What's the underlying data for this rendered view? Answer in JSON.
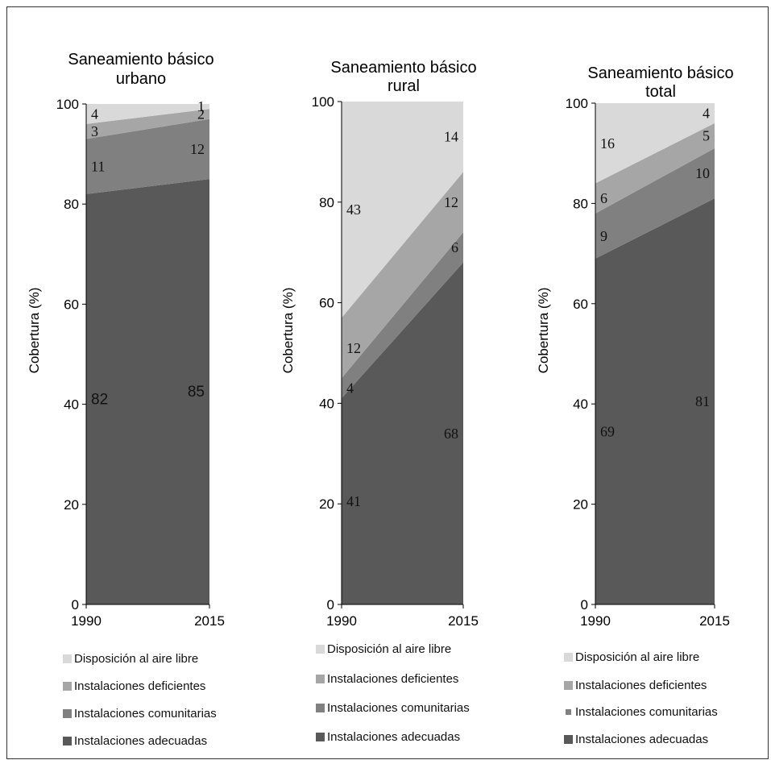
{
  "colors": {
    "aire_libre": "#d9d9d9",
    "deficientes": "#a6a6a6",
    "comunitarias": "#808080",
    "adecuadas": "#595959"
  },
  "chart_data": [
    {
      "type": "area",
      "title": "Saneamiento básico urbano",
      "title_lines": [
        "Saneamiento básico",
        "urbano"
      ],
      "ylabel": "Cobertura (%)",
      "x": [
        "1990",
        "2015"
      ],
      "ylim": [
        0,
        100
      ],
      "yticks": [
        "0",
        "20",
        "40",
        "60",
        "80",
        "100"
      ],
      "stacked": true,
      "series": [
        {
          "name": "Instalaciones adecuadas",
          "values": [
            82,
            85
          ]
        },
        {
          "name": "Instalaciones comunitarias",
          "values": [
            11,
            12
          ]
        },
        {
          "name": "Instalaciones deficientes",
          "values": [
            3,
            2
          ]
        },
        {
          "name": "Disposición al aire libre",
          "values": [
            4,
            1
          ]
        }
      ],
      "legend": [
        "Disposición al aire libre",
        "Instalaciones deficientes",
        "Instalaciones comunitarias",
        "Instalaciones adecuadas"
      ]
    },
    {
      "type": "area",
      "title": "Saneamiento básico rural",
      "title_lines": [
        "Saneamiento básico",
        "rural"
      ],
      "ylabel": "Cobertura (%)",
      "x": [
        "1990",
        "2015"
      ],
      "ylim": [
        0,
        100
      ],
      "yticks": [
        "0",
        "20",
        "40",
        "60",
        "80",
        "100"
      ],
      "stacked": true,
      "series": [
        {
          "name": "Instalaciones adecuadas",
          "values": [
            41,
            68
          ]
        },
        {
          "name": "Instalaciones comunitarias",
          "values": [
            4,
            6
          ]
        },
        {
          "name": "Instalaciones deficientes",
          "values": [
            12,
            12
          ]
        },
        {
          "name": "Disposición al aire libre",
          "values": [
            43,
            14
          ]
        }
      ],
      "legend": [
        "Disposición al aire libre",
        "Instalaciones deficientes",
        "Instalaciones comunitarias",
        "Instalaciones adecuadas"
      ]
    },
    {
      "type": "area",
      "title": "Saneamiento básico total",
      "title_lines": [
        "Saneamiento básico",
        "total"
      ],
      "ylabel": "Cobertura (%)",
      "x": [
        "1990",
        "2015"
      ],
      "ylim": [
        0,
        100
      ],
      "yticks": [
        "0",
        "20",
        "40",
        "60",
        "80",
        "100"
      ],
      "stacked": true,
      "series": [
        {
          "name": "Instalaciones adecuadas",
          "values": [
            69,
            81
          ]
        },
        {
          "name": "Instalaciones comunitarias",
          "values": [
            9,
            10
          ]
        },
        {
          "name": "Instalaciones deficientes",
          "values": [
            6,
            5
          ]
        },
        {
          "name": "Disposición al aire libre",
          "values": [
            16,
            4
          ]
        }
      ],
      "legend": [
        "Disposición al aire libre",
        "Instalaciones deficientes",
        "Instalaciones comunitarias",
        "Instalaciones adecuadas"
      ]
    }
  ]
}
